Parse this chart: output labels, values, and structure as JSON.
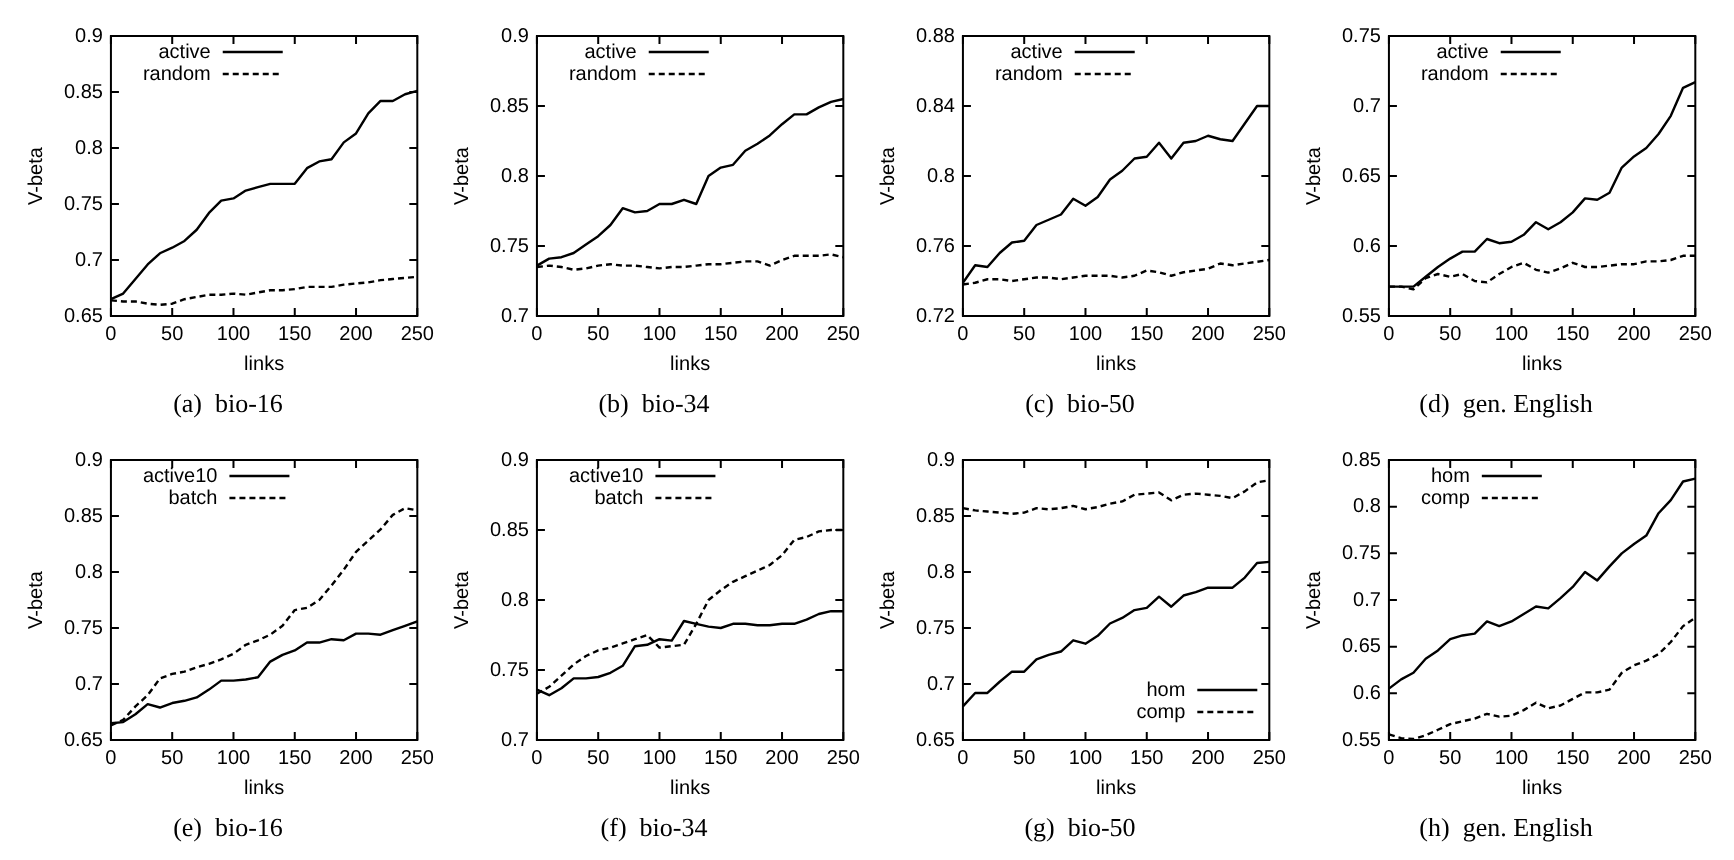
{
  "chart_data": [
    {
      "type": "line",
      "title": "(a)  bio-16",
      "xlabel": "links",
      "ylabel": "V-beta",
      "x": [
        0,
        10,
        20,
        30,
        40,
        50,
        60,
        70,
        80,
        90,
        100,
        110,
        120,
        130,
        140,
        150,
        160,
        170,
        180,
        190,
        200,
        210,
        220,
        230,
        240,
        250
      ],
      "xlim": [
        0,
        250
      ],
      "xticks": [
        0,
        50,
        100,
        150,
        200,
        250
      ],
      "ylim": [
        0.65,
        0.9
      ],
      "yticks": [
        0.65,
        0.7,
        0.75,
        0.8,
        0.85,
        0.9
      ],
      "legend": "top left",
      "grid": false,
      "series": [
        {
          "name": "active",
          "color": "#000000",
          "line_style": "solid",
          "values": [
            0.665,
            0.67,
            0.683,
            0.696,
            0.706,
            0.711,
            0.717,
            0.727,
            0.742,
            0.753,
            0.755,
            0.762,
            0.765,
            0.768,
            0.768,
            0.768,
            0.782,
            0.788,
            0.79,
            0.805,
            0.813,
            0.831,
            0.842,
            0.842,
            0.848,
            0.851
          ]
        },
        {
          "name": "random",
          "color": "#000000",
          "line_style": "dashed",
          "values": [
            0.664,
            0.663,
            0.663,
            0.661,
            0.66,
            0.661,
            0.665,
            0.667,
            0.669,
            0.669,
            0.67,
            0.669,
            0.671,
            0.673,
            0.673,
            0.674,
            0.676,
            0.676,
            0.676,
            0.678,
            0.679,
            0.68,
            0.682,
            0.683,
            0.684,
            0.685
          ]
        }
      ]
    },
    {
      "type": "line",
      "title": "(b)  bio-34",
      "xlabel": "links",
      "ylabel": "V-beta",
      "x": [
        0,
        10,
        20,
        30,
        40,
        50,
        60,
        70,
        80,
        90,
        100,
        110,
        120,
        130,
        140,
        150,
        160,
        170,
        180,
        190,
        200,
        210,
        220,
        230,
        240,
        250
      ],
      "xlim": [
        0,
        250
      ],
      "xticks": [
        0,
        50,
        100,
        150,
        200,
        250
      ],
      "ylim": [
        0.7,
        0.9
      ],
      "yticks": [
        0.7,
        0.75,
        0.8,
        0.85,
        0.9
      ],
      "legend": "top left",
      "grid": false,
      "series": [
        {
          "name": "active",
          "color": "#000000",
          "line_style": "solid",
          "values": [
            0.736,
            0.741,
            0.742,
            0.745,
            0.751,
            0.757,
            0.765,
            0.777,
            0.774,
            0.775,
            0.78,
            0.78,
            0.783,
            0.78,
            0.8,
            0.806,
            0.808,
            0.818,
            0.823,
            0.829,
            0.837,
            0.844,
            0.844,
            0.849,
            0.853,
            0.855
          ]
        },
        {
          "name": "random",
          "color": "#000000",
          "line_style": "dashed",
          "values": [
            0.735,
            0.736,
            0.735,
            0.733,
            0.734,
            0.736,
            0.737,
            0.736,
            0.736,
            0.735,
            0.734,
            0.735,
            0.735,
            0.736,
            0.737,
            0.737,
            0.738,
            0.739,
            0.739,
            0.736,
            0.74,
            0.743,
            0.743,
            0.743,
            0.744,
            0.742
          ]
        }
      ]
    },
    {
      "type": "line",
      "title": "(c)  bio-50",
      "xlabel": "links",
      "ylabel": "V-beta",
      "x": [
        0,
        10,
        20,
        30,
        40,
        50,
        60,
        70,
        80,
        90,
        100,
        110,
        120,
        130,
        140,
        150,
        160,
        170,
        180,
        190,
        200,
        210,
        220,
        230,
        240,
        250
      ],
      "xlim": [
        0,
        250
      ],
      "xticks": [
        0,
        50,
        100,
        150,
        200,
        250
      ],
      "ylim": [
        0.72,
        0.88
      ],
      "yticks": [
        0.72,
        0.76,
        0.8,
        0.84,
        0.88
      ],
      "legend": "top left",
      "grid": false,
      "series": [
        {
          "name": "active",
          "color": "#000000",
          "line_style": "solid",
          "values": [
            0.739,
            0.749,
            0.748,
            0.756,
            0.762,
            0.763,
            0.772,
            0.775,
            0.778,
            0.787,
            0.783,
            0.788,
            0.798,
            0.803,
            0.81,
            0.811,
            0.819,
            0.81,
            0.819,
            0.82,
            0.823,
            0.821,
            0.82,
            0.83,
            0.84,
            0.84
          ]
        },
        {
          "name": "random",
          "color": "#000000",
          "line_style": "dashed",
          "values": [
            0.738,
            0.739,
            0.741,
            0.741,
            0.74,
            0.741,
            0.742,
            0.742,
            0.741,
            0.742,
            0.743,
            0.743,
            0.743,
            0.742,
            0.743,
            0.746,
            0.745,
            0.743,
            0.745,
            0.746,
            0.747,
            0.75,
            0.749,
            0.75,
            0.751,
            0.752
          ]
        }
      ]
    },
    {
      "type": "line",
      "title": "(d)  gen. English",
      "xlabel": "links",
      "ylabel": "V-beta",
      "x": [
        0,
        10,
        20,
        30,
        40,
        50,
        60,
        70,
        80,
        90,
        100,
        110,
        120,
        130,
        140,
        150,
        160,
        170,
        180,
        190,
        200,
        210,
        220,
        230,
        240,
        250
      ],
      "xlim": [
        0,
        250
      ],
      "xticks": [
        0,
        50,
        100,
        150,
        200,
        250
      ],
      "ylim": [
        0.55,
        0.75
      ],
      "yticks": [
        0.55,
        0.6,
        0.65,
        0.7,
        0.75
      ],
      "legend": "top left",
      "grid": false,
      "series": [
        {
          "name": "active",
          "color": "#000000",
          "line_style": "solid",
          "values": [
            0.571,
            0.571,
            0.571,
            0.578,
            0.585,
            0.591,
            0.596,
            0.596,
            0.605,
            0.602,
            0.603,
            0.608,
            0.617,
            0.612,
            0.617,
            0.624,
            0.634,
            0.633,
            0.638,
            0.656,
            0.664,
            0.67,
            0.68,
            0.693,
            0.713,
            0.717
          ]
        },
        {
          "name": "random",
          "color": "#000000",
          "line_style": "dashed",
          "values": [
            0.571,
            0.571,
            0.569,
            0.577,
            0.58,
            0.578,
            0.58,
            0.575,
            0.574,
            0.58,
            0.585,
            0.588,
            0.583,
            0.581,
            0.584,
            0.588,
            0.585,
            0.585,
            0.586,
            0.587,
            0.587,
            0.589,
            0.589,
            0.59,
            0.593,
            0.593
          ]
        }
      ]
    },
    {
      "type": "line",
      "title": "(e)  bio-16",
      "xlabel": "links",
      "ylabel": "V-beta",
      "x": [
        0,
        10,
        20,
        30,
        40,
        50,
        60,
        70,
        80,
        90,
        100,
        110,
        120,
        130,
        140,
        150,
        160,
        170,
        180,
        190,
        200,
        210,
        220,
        230,
        240,
        250
      ],
      "xlim": [
        0,
        250
      ],
      "xticks": [
        0,
        50,
        100,
        150,
        200,
        250
      ],
      "ylim": [
        0.65,
        0.9
      ],
      "yticks": [
        0.65,
        0.7,
        0.75,
        0.8,
        0.85,
        0.9
      ],
      "legend": "top left",
      "grid": false,
      "series": [
        {
          "name": "active10",
          "color": "#000000",
          "line_style": "solid",
          "values": [
            0.665,
            0.666,
            0.673,
            0.682,
            0.679,
            0.683,
            0.685,
            0.688,
            0.695,
            0.703,
            0.703,
            0.704,
            0.706,
            0.72,
            0.726,
            0.73,
            0.737,
            0.737,
            0.74,
            0.739,
            0.745,
            0.745,
            0.744,
            0.748,
            0.752,
            0.756
          ]
        },
        {
          "name": "batch",
          "color": "#000000",
          "line_style": "dashed",
          "values": [
            0.663,
            0.668,
            0.68,
            0.69,
            0.705,
            0.709,
            0.711,
            0.715,
            0.718,
            0.722,
            0.727,
            0.735,
            0.739,
            0.744,
            0.752,
            0.766,
            0.768,
            0.775,
            0.788,
            0.802,
            0.818,
            0.828,
            0.838,
            0.851,
            0.857,
            0.855
          ]
        }
      ]
    },
    {
      "type": "line",
      "title": "(f)  bio-34",
      "xlabel": "links",
      "ylabel": "V-beta",
      "x": [
        0,
        10,
        20,
        30,
        40,
        50,
        60,
        70,
        80,
        90,
        100,
        110,
        120,
        130,
        140,
        150,
        160,
        170,
        180,
        190,
        200,
        210,
        220,
        230,
        240,
        250
      ],
      "xlim": [
        0,
        250
      ],
      "xticks": [
        0,
        50,
        100,
        150,
        200,
        250
      ],
      "ylim": [
        0.7,
        0.9
      ],
      "yticks": [
        0.7,
        0.75,
        0.8,
        0.85,
        0.9
      ],
      "legend": "top left",
      "grid": false,
      "series": [
        {
          "name": "active10",
          "color": "#000000",
          "line_style": "solid",
          "values": [
            0.736,
            0.732,
            0.737,
            0.744,
            0.744,
            0.745,
            0.748,
            0.753,
            0.767,
            0.768,
            0.772,
            0.771,
            0.785,
            0.783,
            0.781,
            0.78,
            0.783,
            0.783,
            0.782,
            0.782,
            0.783,
            0.783,
            0.786,
            0.79,
            0.792,
            0.792
          ]
        },
        {
          "name": "batch",
          "color": "#000000",
          "line_style": "dashed",
          "values": [
            0.733,
            0.738,
            0.746,
            0.754,
            0.76,
            0.764,
            0.766,
            0.769,
            0.772,
            0.775,
            0.766,
            0.767,
            0.768,
            0.783,
            0.8,
            0.807,
            0.813,
            0.817,
            0.821,
            0.825,
            0.832,
            0.843,
            0.845,
            0.849,
            0.85,
            0.85
          ]
        }
      ]
    },
    {
      "type": "line",
      "title": "(g)  bio-50",
      "xlabel": "links",
      "ylabel": "V-beta",
      "x": [
        0,
        10,
        20,
        30,
        40,
        50,
        60,
        70,
        80,
        90,
        100,
        110,
        120,
        130,
        140,
        150,
        160,
        170,
        180,
        190,
        200,
        210,
        220,
        230,
        240,
        250
      ],
      "xlim": [
        0,
        250
      ],
      "xticks": [
        0,
        50,
        100,
        150,
        200,
        250
      ],
      "ylim": [
        0.65,
        0.9
      ],
      "yticks": [
        0.65,
        0.7,
        0.75,
        0.8,
        0.85,
        0.9
      ],
      "legend": "bottom right",
      "grid": false,
      "series": [
        {
          "name": "hom",
          "color": "#000000",
          "line_style": "solid",
          "values": [
            0.68,
            0.692,
            0.692,
            0.702,
            0.711,
            0.711,
            0.722,
            0.726,
            0.729,
            0.739,
            0.736,
            0.743,
            0.754,
            0.759,
            0.766,
            0.768,
            0.778,
            0.769,
            0.779,
            0.782,
            0.786,
            0.786,
            0.786,
            0.795,
            0.808,
            0.809
          ]
        },
        {
          "name": "comp",
          "color": "#000000",
          "line_style": "dashed",
          "values": [
            0.857,
            0.855,
            0.854,
            0.853,
            0.852,
            0.853,
            0.857,
            0.856,
            0.857,
            0.859,
            0.856,
            0.858,
            0.861,
            0.863,
            0.869,
            0.87,
            0.871,
            0.864,
            0.869,
            0.87,
            0.869,
            0.868,
            0.866,
            0.872,
            0.88,
            0.882
          ]
        }
      ]
    },
    {
      "type": "line",
      "title": "(h)  gen. English",
      "xlabel": "links",
      "ylabel": "V-beta",
      "x": [
        0,
        10,
        20,
        30,
        40,
        50,
        60,
        70,
        80,
        90,
        100,
        110,
        120,
        130,
        140,
        150,
        160,
        170,
        180,
        190,
        200,
        210,
        220,
        230,
        240,
        250
      ],
      "xlim": [
        0,
        250
      ],
      "xticks": [
        0,
        50,
        100,
        150,
        200,
        250
      ],
      "ylim": [
        0.55,
        0.85
      ],
      "yticks": [
        0.55,
        0.6,
        0.65,
        0.7,
        0.75,
        0.8,
        0.85
      ],
      "legend": "top left",
      "grid": false,
      "series": [
        {
          "name": "hom",
          "color": "#000000",
          "line_style": "solid",
          "values": [
            0.605,
            0.615,
            0.622,
            0.637,
            0.646,
            0.658,
            0.662,
            0.664,
            0.677,
            0.672,
            0.677,
            0.685,
            0.693,
            0.691,
            0.702,
            0.714,
            0.73,
            0.721,
            0.736,
            0.75,
            0.76,
            0.769,
            0.793,
            0.807,
            0.827,
            0.83
          ]
        },
        {
          "name": "comp",
          "color": "#000000",
          "line_style": "dashed",
          "values": [
            0.556,
            0.552,
            0.551,
            0.555,
            0.561,
            0.567,
            0.57,
            0.573,
            0.578,
            0.575,
            0.576,
            0.582,
            0.59,
            0.584,
            0.587,
            0.594,
            0.601,
            0.601,
            0.604,
            0.622,
            0.63,
            0.635,
            0.642,
            0.655,
            0.672,
            0.681
          ]
        }
      ]
    }
  ]
}
